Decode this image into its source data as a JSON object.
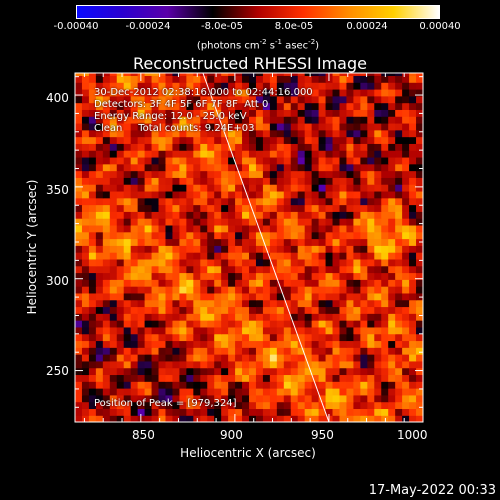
{
  "chart_data": {
    "type": "heatmap",
    "title": "Reconstructed RHESSI Image",
    "xlabel": "Heliocentric X (arcsec)",
    "ylabel": "Heliocentric Y (arcsec)",
    "xlim": [
      815,
      1000
    ],
    "ylim": [
      222,
      412
    ],
    "x_ticks": [
      850,
      900,
      950,
      1000
    ],
    "y_ticks": [
      250,
      300,
      350,
      400
    ],
    "colorbar": {
      "range": [
        -0.0004,
        0.0004
      ],
      "tick_labels": [
        "-0.00040",
        "-0.00024",
        "-8.0e-05",
        "8.0e-05",
        "0.00024",
        "0.00040"
      ],
      "colors": [
        "#0a0aff",
        "#2a00d0",
        "#5a00a8",
        "#000000",
        "#b00000",
        "#ff3000",
        "#ff8c00",
        "#ffd000",
        "#ffffff"
      ]
    },
    "info_lines": [
      "30-Dec-2012 02:38:16.000 to 02:44:16.000",
      "Detectors: 3F 4F 5F 6F 7F 8F  Att 0",
      "Energy Range: 12.0 - 25.0 keV",
      "Clean     Total counts: 9.24E+03"
    ],
    "peak_label": "Position of Peak = [979,324]",
    "peak_position": [
      979,
      324
    ],
    "limb_line": [
      [
        883,
        412
      ],
      [
        950,
        222
      ]
    ]
  },
  "colorbar_units": {
    "prefix": "(photons cm",
    "exp1": "-2",
    "mid1": " s",
    "exp2": "-1",
    "mid2": " asec",
    "exp3": "-2",
    "suffix": ")"
  },
  "footer": {
    "timestamp": "17-May-2022 00:33"
  }
}
